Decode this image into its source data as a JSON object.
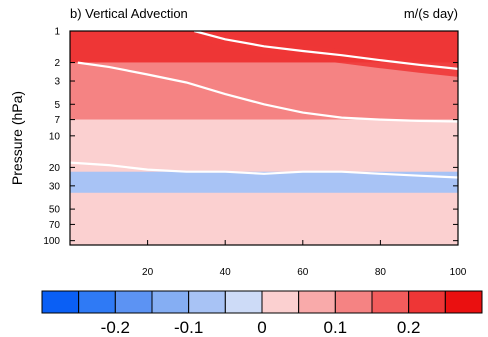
{
  "chart_data": {
    "type": "heatmap",
    "title_left": "b) Vertical Advection",
    "title_right": "m/(s day)",
    "ylabel": "Pressure (hPa)",
    "xlabel": "",
    "xlim": [
      0,
      100
    ],
    "y_scale": "log",
    "y_reversed": true,
    "ylim": [
      1,
      110
    ],
    "x_ticks": [
      "20",
      "40",
      "60",
      "80",
      "100"
    ],
    "y_ticks": [
      "1",
      "2",
      "3",
      "5",
      "7",
      "10",
      "20",
      "30",
      "50",
      "70",
      "100"
    ],
    "colorbar": {
      "orientation": "horizontal",
      "tick_labels": [
        "-0.2",
        "-0.1",
        "0",
        "0.1",
        "0.2"
      ],
      "colors": [
        "#0a5ff5",
        "#2f7af5",
        "#5c93f3",
        "#85aef3",
        "#a8c3f5",
        "#cddbf7",
        "#fbd0d0",
        "#f9aaaa",
        "#f58383",
        "#f25c5c",
        "#ee3636",
        "#ea1010"
      ]
    },
    "bands": [
      {
        "p_top": 1.0,
        "p_bottom": 2.0,
        "value": 0.2,
        "description_range": "x 30-100"
      },
      {
        "p_top": 2.0,
        "p_bottom": 7.0,
        "value": 0.12
      },
      {
        "p_top": 7.0,
        "p_bottom": 20.0,
        "value": 0.05
      },
      {
        "p_top": 22.0,
        "p_bottom": 35.0,
        "value": -0.06
      },
      {
        "p_top": 35.0,
        "p_bottom": 110.0,
        "value": 0.04
      }
    ],
    "zero_contours": [
      {
        "x": [
          2,
          10,
          20,
          30,
          40,
          50,
          60,
          70,
          80,
          90,
          100
        ],
        "p": [
          2.0,
          2.2,
          2.6,
          3.1,
          4.0,
          5.0,
          6.0,
          6.7,
          7.0,
          7.2,
          7.3
        ]
      },
      {
        "x": [
          0,
          10,
          20,
          30,
          40,
          50,
          60,
          70,
          80,
          90,
          100
        ],
        "p": [
          18,
          19,
          21,
          22,
          22,
          23,
          22,
          22,
          23,
          24,
          25
        ]
      },
      {
        "x": [
          32,
          40,
          50,
          60,
          70,
          80,
          90,
          100
        ],
        "p": [
          1.0,
          1.2,
          1.4,
          1.55,
          1.7,
          1.9,
          2.1,
          2.3
        ]
      }
    ]
  }
}
